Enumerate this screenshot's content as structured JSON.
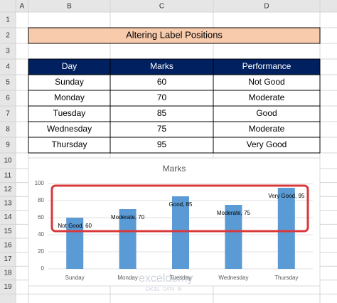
{
  "sheet": {
    "columns": [
      "A",
      "B",
      "C",
      "D"
    ],
    "rows": [
      1,
      2,
      3,
      4,
      5,
      6,
      7,
      8,
      9,
      10,
      11,
      12,
      13,
      14,
      15,
      16,
      17,
      18,
      19
    ]
  },
  "title": "Altering Label Positions",
  "table": {
    "header": [
      "Day",
      "Marks",
      "Performance"
    ],
    "rows": [
      [
        "Sunday",
        "60",
        "Not Good"
      ],
      [
        "Monday",
        "70",
        "Moderate"
      ],
      [
        "Tuesday",
        "85",
        "Good"
      ],
      [
        "Wednesday",
        "75",
        "Moderate"
      ],
      [
        "Thursday",
        "95",
        "Very Good"
      ]
    ]
  },
  "watermark": {
    "name": "exceldemy",
    "tagline": "EXCEL · DATA · BI"
  },
  "chart_data": {
    "type": "bar",
    "title": "Marks",
    "categories": [
      "Sunday",
      "Monday",
      "Tuesday",
      "Wednesday",
      "Thursday"
    ],
    "values": [
      60,
      70,
      85,
      75,
      95
    ],
    "value_labels": [
      "Not Good, 60",
      "Moderate, 70",
      "Good, 85",
      "Moderate, 75",
      "Very Good, 95"
    ],
    "color": "#5b9bd5",
    "ylim": [
      0,
      100
    ],
    "yticks": [
      0,
      20,
      40,
      60,
      80,
      100
    ],
    "grid": true
  }
}
